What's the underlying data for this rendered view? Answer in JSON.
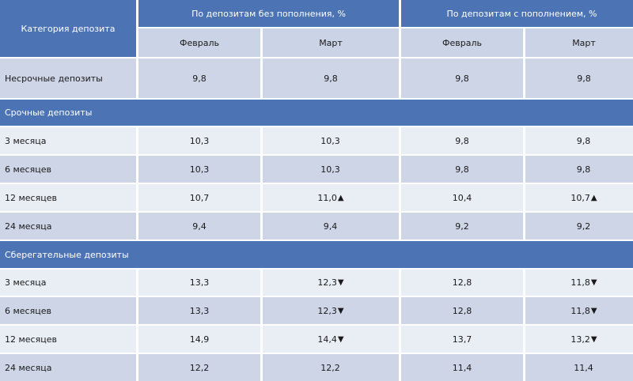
{
  "header": {
    "category_label": "Категория депозита",
    "group_no_topup": "По депозитам без пополнения, %",
    "group_topup": "По депозитам с пополнением, %",
    "month_feb": "Февраль",
    "month_mar": "Март"
  },
  "rows": {
    "nonterm": {
      "label": "Несрочные депозиты",
      "v1": "9,8",
      "v2": "9,8",
      "v3": "9,8",
      "v4": "9,8"
    },
    "term_section": "Срочные депозиты",
    "term": [
      {
        "label": "3 месяца",
        "v1": "10,3",
        "v2": "10,3",
        "v3": "9,8",
        "v4": "9,8",
        "a2": "",
        "a4": ""
      },
      {
        "label": "6 месяцев",
        "v1": "10,3",
        "v2": "10,3",
        "v3": "9,8",
        "v4": "9,8",
        "a2": "",
        "a4": ""
      },
      {
        "label": "12 месяцев",
        "v1": "10,7",
        "v2": "11,0",
        "v3": "10,4",
        "v4": "10,7",
        "a2": "▲",
        "a4": "▲"
      },
      {
        "label": "24 месяца",
        "v1": "9,4",
        "v2": "9,4",
        "v3": "9,2",
        "v4": "9,2",
        "a2": "",
        "a4": ""
      }
    ],
    "savings_section": "Сберегательные депозиты",
    "savings": [
      {
        "label": "3 месяца",
        "v1": "13,3",
        "v2": "12,3",
        "v3": "12,8",
        "v4": "11,8",
        "a2": "▼",
        "a4": "▼"
      },
      {
        "label": "6 месяцев",
        "v1": "13,3",
        "v2": "12,3",
        "v3": "12,8",
        "v4": "11,8",
        "a2": "▼",
        "a4": "▼"
      },
      {
        "label": "12 месяцев",
        "v1": "14,9",
        "v2": "14,4",
        "v3": "13,7",
        "v4": "13,2",
        "a2": "▼",
        "a4": "▼"
      },
      {
        "label": "24 месяца",
        "v1": "12,2",
        "v2": "12,2",
        "v3": "11,4",
        "v4": "11,4",
        "a2": "",
        "a4": ""
      }
    ]
  }
}
